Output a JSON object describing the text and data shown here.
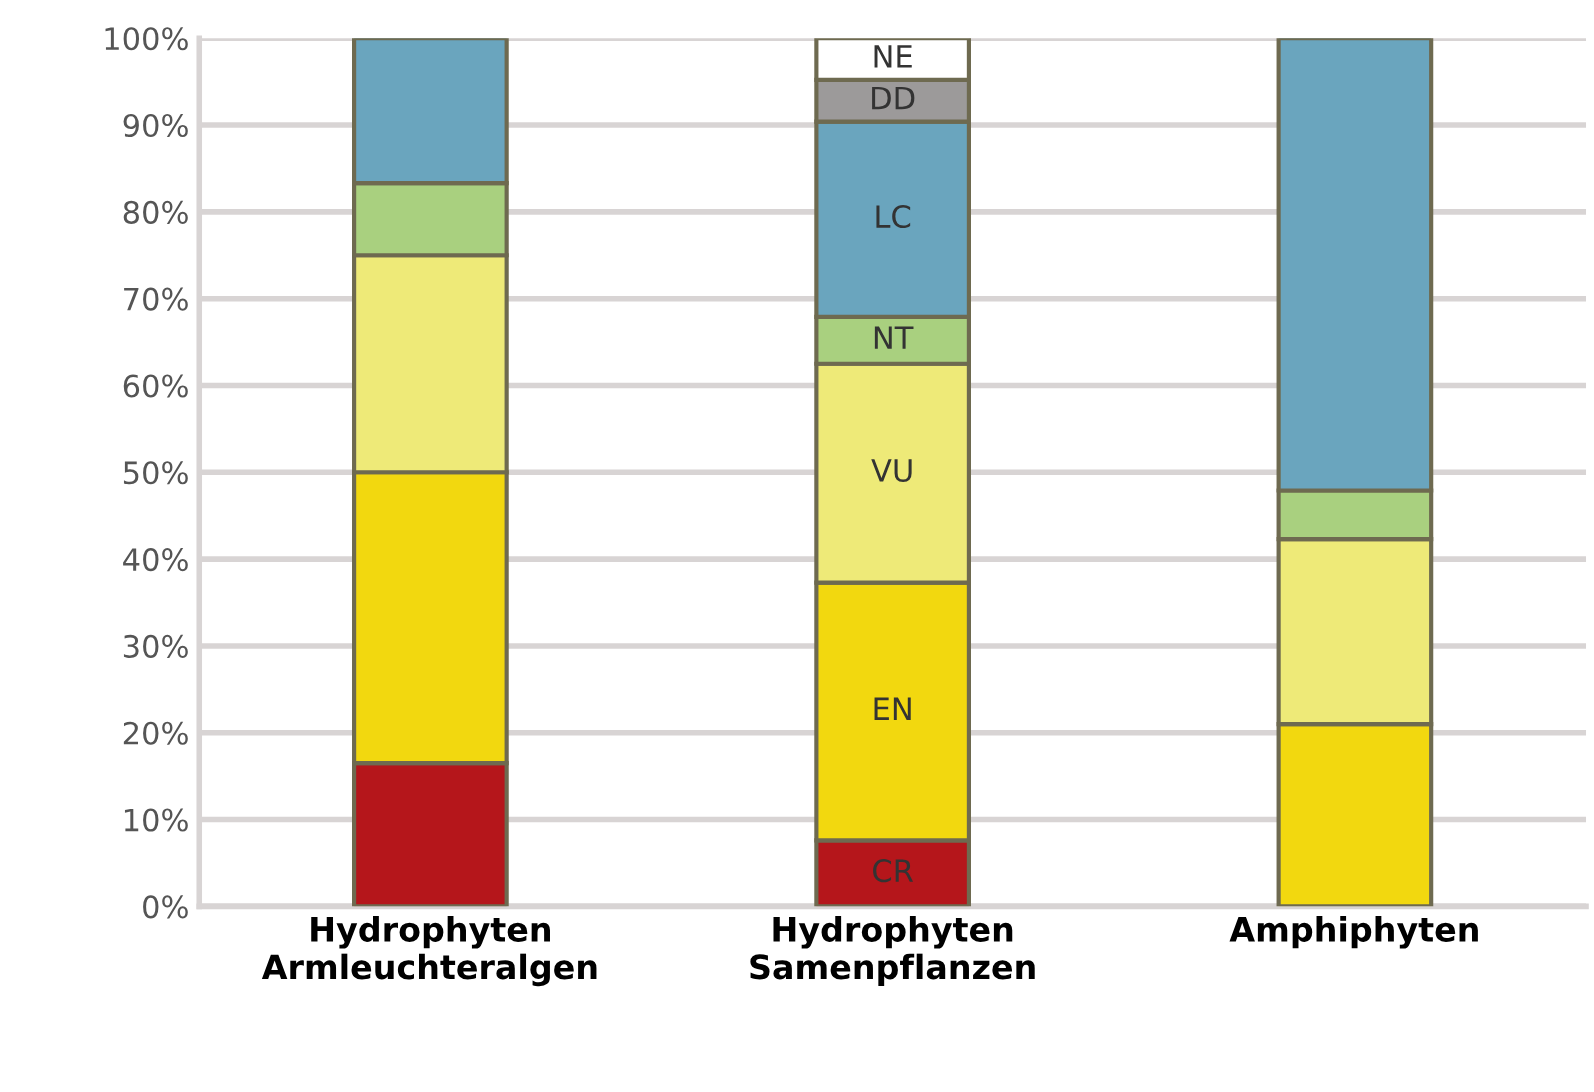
{
  "chart_data": {
    "type": "bar",
    "stacked": true,
    "categories": [
      "Hydrophyten\nArmleuchteralgen",
      "Hydrophyten\nSamenpflanzen",
      "Amphiphyten"
    ],
    "series": [
      {
        "name": "CR",
        "color": "#b5161b",
        "values": [
          16.5,
          7.6,
          0
        ]
      },
      {
        "name": "EN",
        "color": "#f2d80f",
        "values": [
          33.5,
          29.7,
          21
        ]
      },
      {
        "name": "VU",
        "color": "#eeea78",
        "values": [
          25,
          25.2,
          21.3
        ]
      },
      {
        "name": "NT",
        "color": "#a9d07f",
        "values": [
          8.3,
          5.4,
          5.6
        ]
      },
      {
        "name": "LC",
        "color": "#6aa5be",
        "values": [
          16.7,
          22.5,
          52.1
        ]
      },
      {
        "name": "DD",
        "color": "#9c9a9a",
        "values": [
          0,
          4.8,
          0
        ]
      },
      {
        "name": "NE",
        "color": "#ffffff",
        "values": [
          0,
          4.8,
          0
        ]
      }
    ],
    "ylim": [
      0,
      100
    ],
    "yticks": [
      {
        "value": 0,
        "label": "0%"
      },
      {
        "value": 10,
        "label": "10%"
      },
      {
        "value": 20,
        "label": "20%"
      },
      {
        "value": 30,
        "label": "30%"
      },
      {
        "value": 40,
        "label": "40%"
      },
      {
        "value": 50,
        "label": "50%"
      },
      {
        "value": 60,
        "label": "60%"
      },
      {
        "value": 70,
        "label": "70%"
      },
      {
        "value": 80,
        "label": "80%"
      },
      {
        "value": 90,
        "label": "90%"
      },
      {
        "value": 100,
        "label": "100%"
      }
    ],
    "grid": "y",
    "legend": false
  }
}
